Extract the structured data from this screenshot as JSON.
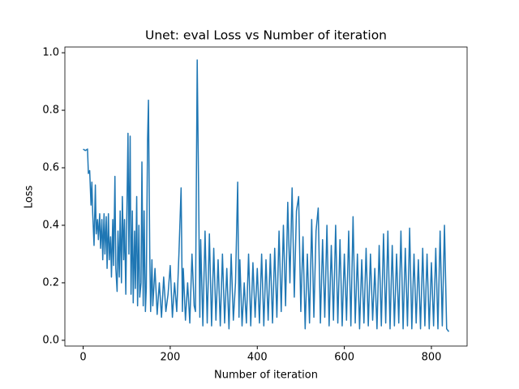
{
  "chart_data": {
    "type": "line",
    "title": "Unet: eval Loss vs Number of iteration",
    "x_label": "Number of iteration",
    "y_label": "Loss",
    "xlim": [
      -42,
      882
    ],
    "ylim": [
      -0.02,
      1.02
    ],
    "xticks": [
      0,
      200,
      400,
      600,
      800
    ],
    "yticks": [
      {
        "value": 0,
        "label": "0.0"
      },
      0.2,
      0.4,
      0.6,
      0.8,
      {
        "value": 1,
        "label": "1.0"
      }
    ],
    "grid": false,
    "series": [
      {
        "color": "#1f77b4",
        "x": [
          0,
          5,
          10,
          12,
          15,
          18,
          20,
          22,
          25,
          28,
          30,
          33,
          35,
          38,
          40,
          43,
          45,
          48,
          50,
          53,
          55,
          58,
          60,
          63,
          65,
          68,
          70,
          73,
          75,
          78,
          80,
          83,
          85,
          88,
          90,
          93,
          95,
          98,
          100,
          103,
          105,
          108,
          110,
          113,
          115,
          118,
          120,
          123,
          125,
          128,
          130,
          133,
          135,
          138,
          140,
          143,
          145,
          148,
          150,
          153,
          155,
          158,
          160,
          165,
          170,
          175,
          180,
          185,
          190,
          195,
          200,
          205,
          210,
          215,
          220,
          225,
          228,
          230,
          235,
          240,
          245,
          250,
          255,
          258,
          262,
          265,
          268,
          270,
          275,
          280,
          285,
          290,
          295,
          300,
          305,
          310,
          315,
          320,
          325,
          330,
          335,
          340,
          345,
          350,
          355,
          358,
          360,
          365,
          370,
          375,
          380,
          385,
          390,
          395,
          400,
          405,
          410,
          415,
          420,
          425,
          430,
          435,
          440,
          445,
          450,
          455,
          460,
          465,
          470,
          475,
          480,
          485,
          490,
          495,
          500,
          505,
          510,
          515,
          520,
          525,
          530,
          535,
          540,
          545,
          550,
          555,
          560,
          565,
          570,
          575,
          580,
          585,
          590,
          595,
          600,
          605,
          610,
          615,
          620,
          625,
          630,
          635,
          640,
          645,
          650,
          655,
          660,
          665,
          670,
          675,
          680,
          685,
          690,
          695,
          700,
          705,
          710,
          715,
          720,
          725,
          730,
          735,
          740,
          745,
          750,
          755,
          760,
          765,
          770,
          775,
          780,
          785,
          790,
          795,
          800,
          805,
          810,
          815,
          820,
          825,
          830,
          835,
          840
        ],
        "values": [
          0.665,
          0.66,
          0.665,
          0.58,
          0.59,
          0.47,
          0.55,
          0.44,
          0.33,
          0.54,
          0.37,
          0.42,
          0.35,
          0.44,
          0.32,
          0.42,
          0.28,
          0.44,
          0.3,
          0.43,
          0.25,
          0.44,
          0.28,
          0.36,
          0.22,
          0.42,
          0.26,
          0.57,
          0.25,
          0.17,
          0.38,
          0.22,
          0.45,
          0.2,
          0.5,
          0.28,
          0.42,
          0.16,
          0.4,
          0.72,
          0.3,
          0.71,
          0.16,
          0.45,
          0.13,
          0.38,
          0.18,
          0.5,
          0.12,
          0.4,
          0.15,
          0.2,
          0.62,
          0.12,
          0.45,
          0.1,
          0.18,
          0.7,
          0.835,
          0.3,
          0.1,
          0.28,
          0.12,
          0.25,
          0.09,
          0.2,
          0.08,
          0.22,
          0.1,
          0.16,
          0.26,
          0.08,
          0.2,
          0.1,
          0.3,
          0.53,
          0.1,
          0.25,
          0.07,
          0.2,
          0.06,
          0.3,
          0.12,
          0.1,
          0.975,
          0.55,
          0.08,
          0.35,
          0.05,
          0.38,
          0.06,
          0.37,
          0.05,
          0.32,
          0.07,
          0.28,
          0.05,
          0.3,
          0.06,
          0.25,
          0.04,
          0.3,
          0.07,
          0.2,
          0.55,
          0.08,
          0.28,
          0.05,
          0.2,
          0.06,
          0.3,
          0.05,
          0.27,
          0.08,
          0.25,
          0.06,
          0.3,
          0.05,
          0.28,
          0.07,
          0.3,
          0.06,
          0.32,
          0.08,
          0.38,
          0.1,
          0.4,
          0.12,
          0.48,
          0.2,
          0.53,
          0.15,
          0.45,
          0.5,
          0.1,
          0.36,
          0.04,
          0.3,
          0.06,
          0.42,
          0.08,
          0.38,
          0.46,
          0.06,
          0.35,
          0.08,
          0.4,
          0.05,
          0.33,
          0.07,
          0.4,
          0.06,
          0.35,
          0.05,
          0.3,
          0.07,
          0.38,
          0.05,
          0.43,
          0.06,
          0.3,
          0.04,
          0.28,
          0.06,
          0.32,
          0.05,
          0.3,
          0.07,
          0.25,
          0.04,
          0.33,
          0.05,
          0.37,
          0.06,
          0.38,
          0.04,
          0.33,
          0.05,
          0.3,
          0.06,
          0.38,
          0.04,
          0.32,
          0.05,
          0.39,
          0.04,
          0.3,
          0.06,
          0.28,
          0.04,
          0.32,
          0.05,
          0.3,
          0.04,
          0.27,
          0.05,
          0.32,
          0.04,
          0.38,
          0.05,
          0.4,
          0.04,
          0.03
        ]
      }
    ]
  }
}
